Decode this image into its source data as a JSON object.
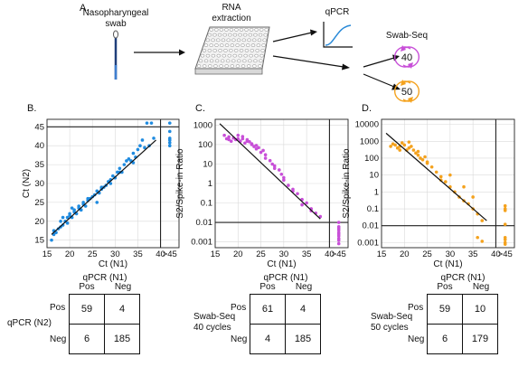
{
  "panel_labels": {
    "a": "A.",
    "b": "B.",
    "c": "C.",
    "d": "D."
  },
  "workflow": {
    "swab_label_line1": "Nasopharyngeal",
    "swab_label_line2": "swab",
    "rna_label_line1": "RNA",
    "rna_label_line2": "extraction",
    "qpcr_label": "qPCR",
    "swabseq_label": "Swab-Seq",
    "cycle_40": "40",
    "cycle_50": "50"
  },
  "colors": {
    "blue": "#1f8be0",
    "magenta": "#c84fd8",
    "orange": "#f4a21e",
    "fit_line": "#111111"
  },
  "chart_data": [
    {
      "id": "B",
      "type": "scatter",
      "xlabel": "Ct (N1)",
      "ylabel": "Ct (N2)",
      "xlim": [
        15,
        47
      ],
      "ylim": [
        13,
        47
      ],
      "log_y": false,
      "xticks": [
        "15",
        "20",
        "25",
        "30",
        "35",
        "40",
        ">45"
      ],
      "yticks": [
        "15",
        "20",
        "25",
        "30",
        "35",
        "40",
        "45"
      ],
      "grid": true,
      "fit": {
        "x": [
          16,
          39
        ],
        "y": [
          16.5,
          41.5
        ]
      },
      "points": {
        "x": [
          16,
          16.5,
          17,
          17.5,
          18,
          18,
          18.5,
          19,
          19.5,
          19.5,
          20,
          20,
          20.5,
          21,
          21,
          21.5,
          22,
          22,
          22.5,
          23,
          23,
          23.5,
          24,
          24.5,
          25,
          25.5,
          26,
          26.5,
          27,
          27.5,
          28,
          28.5,
          29,
          29.5,
          30,
          30.5,
          31,
          31.5,
          32,
          32.5,
          33,
          33.5,
          34,
          34.5,
          35,
          35.5,
          36,
          36.5,
          37,
          37.5,
          38,
          38.5,
          16.5,
          18.5,
          20.5,
          22.5,
          24,
          26,
          27,
          29,
          31,
          34
        ],
        "y": [
          15,
          16.5,
          17,
          18,
          18.5,
          20,
          19,
          20,
          19.5,
          21,
          21.5,
          22,
          21,
          22.5,
          23,
          22,
          23.5,
          24,
          23,
          24.5,
          25,
          24,
          25.5,
          26,
          26.5,
          27,
          28,
          27.5,
          29,
          29,
          29.5,
          30.5,
          30,
          32,
          31.5,
          33,
          34,
          33,
          35,
          36,
          36.5,
          36,
          38,
          37,
          39,
          40,
          41.5,
          39.5,
          46,
          40,
          46,
          42,
          17.5,
          21,
          23.5,
          23,
          26,
          25,
          28.5,
          31,
          33,
          35.5
        ]
      },
      "right_points": {
        "x": [
          46,
          46,
          46,
          46,
          46,
          46
        ],
        "y": [
          40,
          40.8,
          41.5,
          42,
          43.8,
          46
        ]
      }
    },
    {
      "id": "C",
      "type": "scatter",
      "xlabel": "Ct (N1)",
      "ylabel": "S2/Spike-in Ratio",
      "xlim": [
        15,
        47
      ],
      "ylim": [
        0.0005,
        2000
      ],
      "log_y": true,
      "xticks": [
        "15",
        "20",
        "25",
        "30",
        "35",
        "40",
        ">45"
      ],
      "yticks": [
        "0.001",
        "0.01",
        "0.1",
        "1",
        "10",
        "100",
        "1000"
      ],
      "grid": true,
      "fit": {
        "x": [
          16,
          38
        ],
        "y": [
          1200,
          0.015
        ]
      },
      "points": {
        "x": [
          17,
          17.5,
          18,
          18.5,
          19,
          19.5,
          20,
          20.5,
          21,
          21.5,
          22,
          22.5,
          23,
          23.5,
          24,
          24.5,
          25,
          25.5,
          26,
          27,
          27.5,
          28,
          29,
          29.5,
          30,
          31,
          32,
          33,
          34,
          35,
          36,
          37,
          38,
          18,
          20,
          22,
          24,
          26,
          28,
          30,
          32,
          34,
          36,
          21,
          23
        ],
        "y": [
          300,
          200,
          250,
          150,
          220,
          180,
          300,
          150,
          200,
          120,
          180,
          140,
          100,
          80,
          60,
          70,
          40,
          50,
          30,
          15,
          10,
          8,
          5,
          3,
          2,
          0.8,
          0.5,
          0.3,
          0.15,
          0.1,
          0.05,
          0.03,
          0.02,
          180,
          200,
          150,
          90,
          20,
          6,
          1.5,
          0.4,
          0.08,
          0.04,
          260,
          110
        ]
      },
      "right_points": {
        "x": [
          46,
          46,
          46,
          46,
          46,
          46,
          46,
          46,
          46,
          46
        ],
        "y": [
          0.0015,
          0.002,
          0.0025,
          0.003,
          0.004,
          0.005,
          0.006,
          0.0008,
          0.0012,
          0.01
        ]
      }
    },
    {
      "id": "D",
      "type": "scatter",
      "xlabel": "Ct (N1)",
      "ylabel": "S2/Spike-in Ratio",
      "xlim": [
        15,
        47
      ],
      "ylim": [
        0.0005,
        20000
      ],
      "log_y": true,
      "xticks": [
        "15",
        "20",
        "25",
        "30",
        "35",
        "40",
        ">45"
      ],
      "yticks": [
        "0.001",
        "0.01",
        "0.1",
        "1",
        "10",
        "100",
        "1000",
        "10000"
      ],
      "grid": true,
      "fit": {
        "x": [
          16,
          38
        ],
        "y": [
          3000,
          0.02
        ]
      },
      "points": {
        "x": [
          17,
          17.5,
          18,
          18.5,
          19,
          19.5,
          20,
          20.5,
          21,
          21.5,
          22,
          22.5,
          23,
          23.5,
          24,
          24.5,
          25,
          26,
          27,
          28,
          29,
          30,
          31,
          32,
          33,
          34,
          35,
          36,
          37,
          21,
          23,
          25,
          28,
          30,
          33,
          35,
          19,
          36,
          37
        ],
        "y": [
          500,
          700,
          600,
          400,
          500,
          800,
          600,
          300,
          400,
          500,
          300,
          200,
          150,
          100,
          80,
          120,
          60,
          30,
          15,
          8,
          4,
          2,
          1,
          0.5,
          0.3,
          0.2,
          0.1,
          0.05,
          0.02,
          900,
          250,
          50,
          5,
          10,
          2,
          0.5,
          300,
          0.002,
          0.0012
        ]
      },
      "right_points": {
        "x": [
          46,
          46,
          46,
          46,
          46,
          46,
          46,
          46
        ],
        "y": [
          0.0008,
          0.001,
          0.0015,
          0.002,
          0.08,
          0.1,
          0.15,
          0.012
        ]
      }
    }
  ],
  "tables": [
    {
      "col_header": "qPCR (N1)",
      "col_pos": "Pos",
      "col_neg": "Neg",
      "row_title_line1": "qPCR (N2)",
      "row_title_line2": "",
      "row_pos": "Pos",
      "row_neg": "Neg",
      "cells": [
        "59",
        "4",
        "6",
        "185"
      ]
    },
    {
      "col_header": "qPCR (N1)",
      "col_pos": "Pos",
      "col_neg": "Neg",
      "row_title_line1": "Swab-Seq",
      "row_title_line2": "40 cycles",
      "row_pos": "Pos",
      "row_neg": "Neg",
      "cells": [
        "61",
        "4",
        "4",
        "185"
      ]
    },
    {
      "col_header": "qPCR (N1)",
      "col_pos": "Pos",
      "col_neg": "Neg",
      "row_title_line1": "Swab-Seq",
      "row_title_line2": "50 cycles",
      "row_pos": "Pos",
      "row_neg": "Neg",
      "cells": [
        "59",
        "10",
        "6",
        "179"
      ]
    }
  ]
}
